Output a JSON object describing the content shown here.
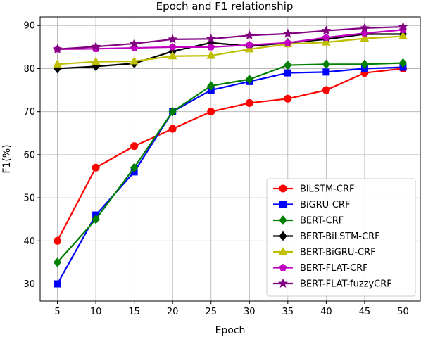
{
  "chart_data": {
    "type": "line",
    "title": "Epoch and F1 relationship",
    "xlabel": "Epoch",
    "ylabel": "F1(%)",
    "x": [
      5,
      10,
      15,
      20,
      25,
      30,
      35,
      40,
      45,
      50
    ],
    "xlim": [
      2.75,
      52.25
    ],
    "ylim": [
      26,
      92
    ],
    "yticks": [
      30,
      40,
      50,
      60,
      70,
      80,
      90
    ],
    "grid": true,
    "legend_position": "lower-right",
    "series": [
      {
        "name": "BiLSTM-CRF",
        "color": "#ff0000",
        "marker": "circle",
        "values": [
          40,
          57,
          62,
          66,
          70,
          72,
          73,
          75,
          79,
          80
        ]
      },
      {
        "name": "BiGRU-CRF",
        "color": "#0000ff",
        "marker": "square",
        "values": [
          30,
          46,
          56,
          70,
          75,
          77,
          79,
          79.2,
          80,
          80.3
        ]
      },
      {
        "name": "BERT-CRF",
        "color": "#008000",
        "marker": "diamond",
        "values": [
          35,
          45,
          57,
          70,
          76,
          77.5,
          80.8,
          81,
          81,
          81.3
        ]
      },
      {
        "name": "BERT-BiLSTM-CRF",
        "color": "#000000",
        "marker": "diamond",
        "values": [
          80,
          80.5,
          81.2,
          84,
          86,
          85.2,
          86,
          86.8,
          88,
          88
        ]
      },
      {
        "name": "BERT-BiGRU-CRF",
        "color": "#bfbf00",
        "marker": "triangle",
        "values": [
          81,
          81.6,
          81.7,
          82.9,
          83,
          84.5,
          85.7,
          86.1,
          87,
          87.5
        ]
      },
      {
        "name": "BERT-FLAT-CRF",
        "color": "#bf00bf",
        "marker": "pentagon",
        "values": [
          84.5,
          84.6,
          84.8,
          85,
          85,
          85.5,
          86,
          87.2,
          88.2,
          89
        ]
      },
      {
        "name": "BERT-FLAT-fuzzyCRF",
        "color": "#800080",
        "marker": "star",
        "values": [
          84.5,
          85.1,
          85.8,
          86.8,
          86.9,
          87.7,
          88.1,
          88.8,
          89.4,
          89.7
        ]
      }
    ]
  }
}
